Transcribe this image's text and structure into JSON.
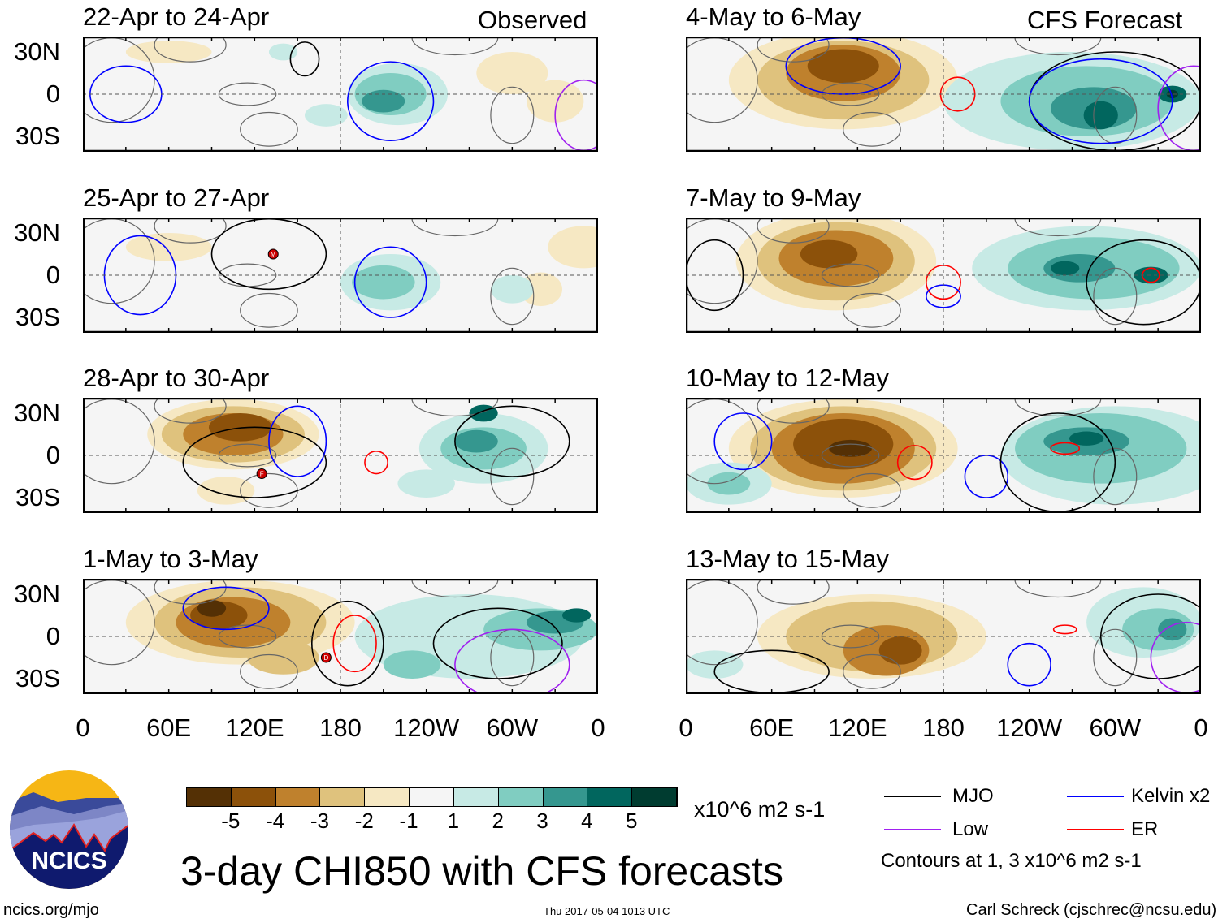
{
  "headers": {
    "left": "Observed",
    "right": "CFS Forecast"
  },
  "panels": [
    {
      "title": "22-Apr to 24-Apr",
      "column": "Observed"
    },
    {
      "title": "25-Apr to 27-Apr",
      "column": "Observed"
    },
    {
      "title": "28-Apr to 30-Apr",
      "column": "Observed"
    },
    {
      "title": "1-May to 3-May",
      "column": "Observed"
    },
    {
      "title": "4-May to 6-May",
      "column": "CFS Forecast"
    },
    {
      "title": "7-May to 9-May",
      "column": "CFS Forecast"
    },
    {
      "title": "10-May to 12-May",
      "column": "CFS Forecast"
    },
    {
      "title": "13-May to 15-May",
      "column": "CFS Forecast"
    }
  ],
  "y_ticks": [
    "30N",
    "0",
    "30S"
  ],
  "x_ticks": [
    "0",
    "60E",
    "120E",
    "180",
    "120W",
    "60W",
    "0"
  ],
  "storm_markers": [
    "M",
    "F",
    "D"
  ],
  "colorbar": {
    "labels": [
      "-5",
      "-4",
      "-3",
      "-2",
      "-1",
      "1",
      "2",
      "3",
      "4",
      "5"
    ],
    "colors": [
      "#543005",
      "#8c510a",
      "#bf812d",
      "#dfc27d",
      "#f6e8c3",
      "#f5f5f5",
      "#c7eae5",
      "#80cdc1",
      "#35978f",
      "#01665e",
      "#003c30"
    ],
    "units": "x10^6 m2 s-1"
  },
  "legend": {
    "items": [
      {
        "label": "MJO",
        "color": "#000000"
      },
      {
        "label": "Kelvin x2",
        "color": "#0000ff"
      },
      {
        "label": "Low",
        "color": "#a020f0"
      },
      {
        "label": "ER",
        "color": "#ff0000"
      }
    ],
    "note": "Contours at 1, 3 x10^6 m2 s-1"
  },
  "title": "3-day CHI850 with CFS forecasts",
  "logo": {
    "text": "NCICS"
  },
  "footer": {
    "url": "ncics.org/mjo",
    "timestamp": "Thu 2017-05-04 1013 UTC",
    "author": "Carl Schreck (cjschrec@ncsu.edu)"
  }
}
